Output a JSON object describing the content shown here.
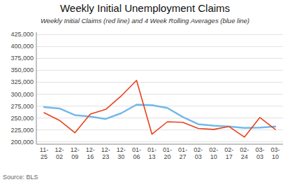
{
  "chart_data": {
    "type": "line",
    "title": "Weekly Initial Unemployment Claims",
    "subtitle": "Weekly Initial Claims (red line) and 4 Week Rolling Averages (blue line)",
    "source": "Source: BLS",
    "categories": [
      "11-\n25",
      "12-\n02",
      "12-\n09",
      "12-\n16",
      "12-\n23",
      "12-\n30",
      "01-\n06",
      "01-\n13",
      "01-\n20",
      "01-\n27",
      "02-\n03",
      "02-\n10",
      "02-\n17",
      "02-\n24",
      "03-\n03",
      "03-\n10"
    ],
    "series": [
      {
        "color": "#74b9e8",
        "values": [
          273000,
          270000,
          256000,
          253000,
          248000,
          260000,
          278000,
          277000,
          271000,
          252000,
          237000,
          234000,
          232000,
          229000,
          230000,
          232000
        ]
      },
      {
        "color": "#e8421c",
        "values": [
          261000,
          245000,
          219000,
          258000,
          268000,
          296000,
          329000,
          216000,
          242000,
          241000,
          228000,
          226000,
          232000,
          210000,
          251000,
          226000
        ]
      }
    ],
    "ylim": [
      195000,
      430000
    ],
    "yticks": [
      {
        "value": 200000,
        "label": "200,000"
      },
      {
        "value": 225000,
        "label": "225,000"
      },
      {
        "value": 250000,
        "label": "250,000"
      },
      {
        "value": 275000,
        "label": "275,000"
      },
      {
        "value": 300000,
        "label": "300,000"
      },
      {
        "value": 325000,
        "label": "325,000"
      },
      {
        "value": 350000,
        "label": "350,000"
      },
      {
        "value": 375000,
        "label": "375,000"
      },
      {
        "value": 400000,
        "label": "400,000"
      },
      {
        "value": 425000,
        "label": "425,000"
      }
    ],
    "grid": true
  }
}
